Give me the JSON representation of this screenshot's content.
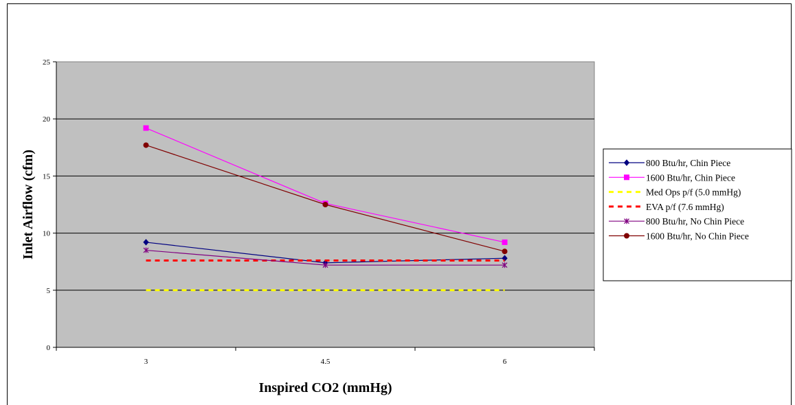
{
  "chart_data": {
    "type": "line",
    "title": "",
    "xlabel": "Inspired CO2 (mmHg)",
    "ylabel": "Inlet Airflow (cfm)",
    "categories": [
      "3",
      "4.5",
      "6"
    ],
    "ylim": [
      0,
      25
    ],
    "yticks": [
      "0",
      "5",
      "10",
      "15",
      "20",
      "25"
    ],
    "grid": true,
    "legend_position": "right",
    "plot_background": "#c0c0c0",
    "series": [
      {
        "name": "800 Btu/hr, Chin Piece",
        "values": [
          9.2,
          7.4,
          7.8
        ],
        "color": "#000080",
        "marker": "diamond",
        "style": "solid"
      },
      {
        "name": "1600 Btu/hr, Chin Piece",
        "values": [
          19.2,
          12.6,
          9.2
        ],
        "color": "#ff00ff",
        "marker": "square",
        "style": "solid"
      },
      {
        "name": "Med Ops p/f (5.0 mmHg)",
        "values": [
          5.0,
          5.0,
          5.0
        ],
        "color": "#ffff00",
        "marker": "none",
        "style": "dashed"
      },
      {
        "name": "EVA p/f (7.6 mmHg)",
        "values": [
          7.6,
          7.6,
          7.6
        ],
        "color": "#ff0000",
        "marker": "none",
        "style": "dashed"
      },
      {
        "name": "800 Btu/hr, No Chin Piece",
        "values": [
          8.5,
          7.2,
          7.2
        ],
        "color": "#800080",
        "marker": "star",
        "style": "solid"
      },
      {
        "name": "1600 Btu/hr, No Chin Piece",
        "values": [
          17.7,
          12.5,
          8.4
        ],
        "color": "#800000",
        "marker": "circle",
        "style": "solid"
      }
    ]
  }
}
